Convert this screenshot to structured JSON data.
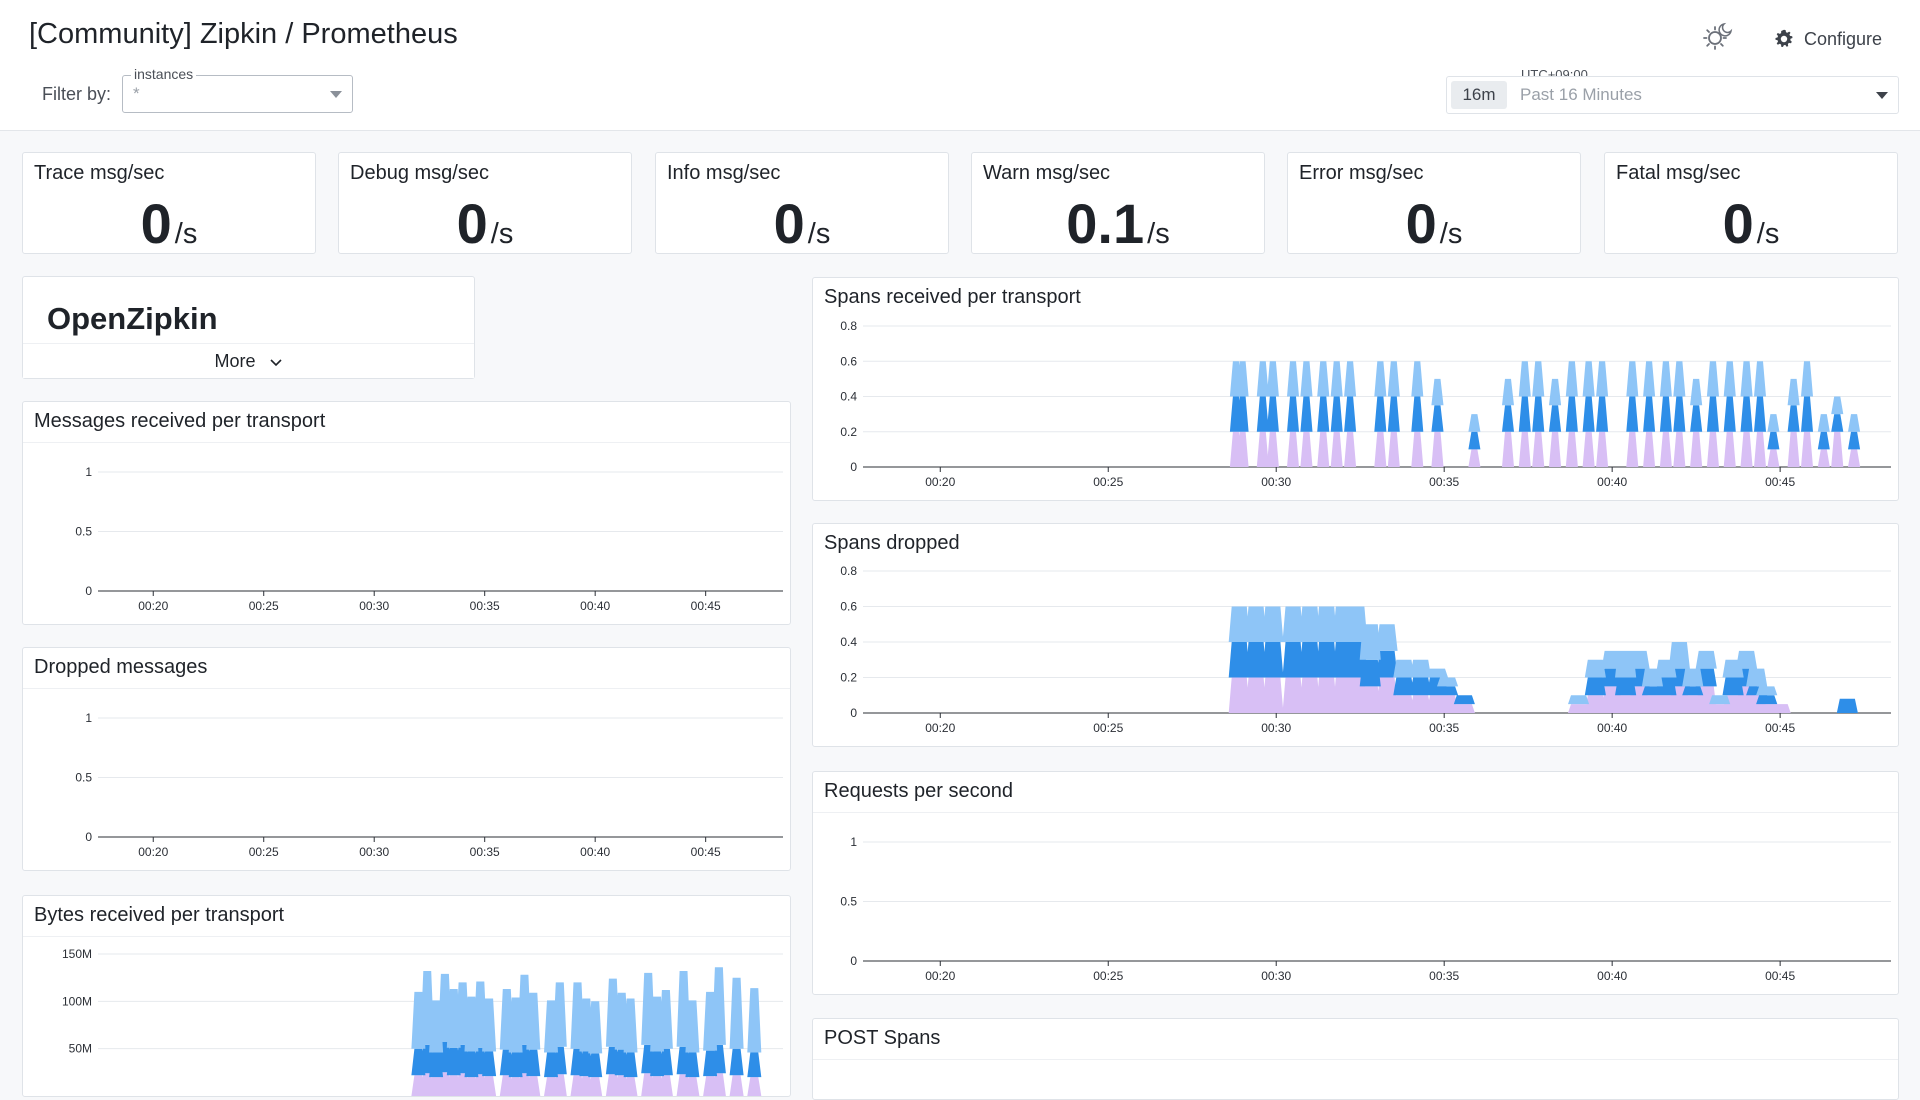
{
  "header": {
    "title": "[Community] Zipkin / Prometheus",
    "filter_label": "Filter by:",
    "filter": {
      "legend": "instances",
      "value": "*"
    },
    "theme_icon": "sun-moon-icon",
    "configure_label": "Configure",
    "timezone": "UTC+09:00",
    "time_chip": "16m",
    "time_range": "Past 16 Minutes"
  },
  "stats": [
    {
      "title": "Trace msg/sec",
      "value": "0",
      "unit": "/s"
    },
    {
      "title": "Debug msg/sec",
      "value": "0",
      "unit": "/s"
    },
    {
      "title": "Info msg/sec",
      "value": "0",
      "unit": "/s"
    },
    {
      "title": "Warn msg/sec",
      "value": "0.1",
      "unit": "/s"
    },
    {
      "title": "Error msg/sec",
      "value": "0",
      "unit": "/s"
    },
    {
      "title": "Fatal msg/sec",
      "value": "0",
      "unit": "/s"
    }
  ],
  "note": {
    "title": "OpenZipkin",
    "more_label": "More"
  },
  "colors": {
    "series_top": "#8ec5f7",
    "series_mid": "#2e8ee8",
    "series_bottom": "#d8bff5",
    "grid": "#e6e9ed",
    "axis": "#2b2f36"
  },
  "panels": {
    "messages": {
      "title": "Messages received per transport"
    },
    "dropped_messages": {
      "title": "Dropped messages"
    },
    "bytes": {
      "title": "Bytes received per transport"
    },
    "spans_received": {
      "title": "Spans received per transport"
    },
    "spans_dropped": {
      "title": "Spans dropped"
    },
    "requests": {
      "title": "Requests per second"
    },
    "post_spans": {
      "title": "POST Spans"
    }
  },
  "chart_data": [
    {
      "id": "messages",
      "type": "area",
      "x": [
        "00:20",
        "00:25",
        "00:30",
        "00:35",
        "00:40",
        "00:45"
      ],
      "yticks": [
        "0",
        "0.5",
        "1"
      ],
      "ylim": [
        0,
        1
      ],
      "series": []
    },
    {
      "id": "dropped_messages",
      "type": "area",
      "x": [
        "00:20",
        "00:25",
        "00:30",
        "00:35",
        "00:40",
        "00:45"
      ],
      "yticks": [
        "0",
        "0.5",
        "1"
      ],
      "ylim": [
        0,
        1
      ],
      "series": []
    },
    {
      "id": "bytes",
      "type": "area",
      "yticks": [
        "50M",
        "100M",
        "150M"
      ],
      "ylim": [
        0,
        150
      ],
      "stack": [
        {
          "t": [
            32.0,
            32.4,
            32.8,
            33.2,
            33.6,
            34.0,
            34.4,
            34.8,
            35.2,
            35.6,
            36.0,
            36.4,
            36.8,
            37.2,
            37.6,
            38.0,
            38.4,
            38.8,
            39.2,
            39.6,
            40.0,
            40.4,
            40.8,
            41.2,
            41.6,
            42.0,
            42.4,
            42.8,
            43.2,
            43.6,
            44.0,
            44.4,
            44.8,
            45.2,
            45.6,
            46.0,
            46.4,
            46.8,
            47.2,
            47.6
          ]
        }
      ],
      "t_range": [
        17.5,
        48.5
      ],
      "layers": [
        {
          "values": [
            22,
            24,
            20,
            25,
            22,
            24,
            20,
            23,
            21,
            0,
            22,
            20,
            24,
            21,
            0,
            20,
            23,
            0,
            22,
            21,
            20,
            0,
            23,
            22,
            20,
            0,
            24,
            21,
            22,
            0,
            23,
            20,
            0,
            21,
            24,
            0,
            22,
            0,
            20,
            0
          ]
        },
        {
          "values": [
            28,
            30,
            26,
            32,
            29,
            30,
            27,
            28,
            26,
            0,
            27,
            26,
            30,
            28,
            0,
            26,
            29,
            0,
            28,
            26,
            25,
            0,
            29,
            27,
            26,
            0,
            30,
            26,
            28,
            0,
            29,
            26,
            0,
            27,
            30,
            0,
            28,
            0,
            26,
            0
          ]
        },
        {
          "values": [
            60,
            78,
            55,
            72,
            62,
            66,
            58,
            70,
            56,
            0,
            64,
            58,
            74,
            60,
            0,
            55,
            68,
            0,
            70,
            56,
            55,
            0,
            72,
            60,
            57,
            0,
            76,
            58,
            62,
            0,
            80,
            55,
            0,
            62,
            82,
            0,
            75,
            0,
            68,
            0
          ]
        }
      ]
    },
    {
      "id": "spans_received",
      "type": "area",
      "x": [
        "00:20",
        "00:25",
        "00:30",
        "00:35",
        "00:40",
        "00:45"
      ],
      "yticks": [
        "0",
        "0.2",
        "0.4",
        "0.6",
        "0.8"
      ],
      "ylim": [
        0,
        0.8
      ],
      "t": [
        28.8,
        29.0,
        29.6,
        29.9,
        30.5,
        30.9,
        31.4,
        31.8,
        32.2,
        32.6,
        33.1,
        33.5,
        34.2,
        34.8,
        35.3,
        35.9,
        36.4,
        36.9,
        37.4,
        37.8,
        38.3,
        38.8,
        39.3,
        39.7,
        40.1,
        40.6,
        41.1,
        41.6,
        42.0,
        42.5,
        43.0,
        43.5,
        44.0,
        44.4,
        44.8,
        45.4,
        45.8,
        46.3,
        46.7,
        47.2
      ],
      "layers": [
        {
          "values": [
            0.2,
            0.2,
            0.2,
            0.2,
            0.2,
            0.2,
            0.2,
            0.2,
            0.2,
            0,
            0.2,
            0.2,
            0.2,
            0.2,
            0,
            0.1,
            0,
            0.2,
            0.2,
            0.2,
            0.2,
            0.2,
            0.2,
            0.2,
            0,
            0.2,
            0.2,
            0.2,
            0.2,
            0.2,
            0.2,
            0.2,
            0.2,
            0.2,
            0.1,
            0.2,
            0.2,
            0.1,
            0.2,
            0.1
          ]
        },
        {
          "values": [
            0.2,
            0.2,
            0.2,
            0.2,
            0.2,
            0.2,
            0.2,
            0.2,
            0.2,
            0,
            0.2,
            0.2,
            0.2,
            0.15,
            0,
            0.1,
            0,
            0.15,
            0.2,
            0.2,
            0.15,
            0.2,
            0.2,
            0.2,
            0,
            0.2,
            0.2,
            0.2,
            0.2,
            0.15,
            0.2,
            0.2,
            0.2,
            0.2,
            0.1,
            0.15,
            0.2,
            0.1,
            0.1,
            0.1
          ]
        },
        {
          "values": [
            0.2,
            0.2,
            0.2,
            0.2,
            0.2,
            0.2,
            0.2,
            0.2,
            0.2,
            0,
            0.2,
            0.2,
            0.2,
            0.15,
            0,
            0.1,
            0,
            0.15,
            0.2,
            0.2,
            0.15,
            0.2,
            0.2,
            0.2,
            0,
            0.2,
            0.2,
            0.2,
            0.2,
            0.15,
            0.2,
            0.2,
            0.2,
            0.2,
            0.1,
            0.15,
            0.2,
            0.1,
            0.1,
            0.1
          ]
        }
      ]
    },
    {
      "id": "spans_dropped",
      "type": "area",
      "x": [
        "00:20",
        "00:25",
        "00:30",
        "00:35",
        "00:40",
        "00:45"
      ],
      "yticks": [
        "0",
        "0.2",
        "0.4",
        "0.6",
        "0.8"
      ],
      "ylim": [
        0,
        0.8
      ],
      "t": [
        28.9,
        29.4,
        29.9,
        30.5,
        31.0,
        31.5,
        32.0,
        32.4,
        32.8,
        33.3,
        33.8,
        34.3,
        34.8,
        35.1,
        35.6,
        36.0,
        37.0,
        38.5,
        39.0,
        39.5,
        40.0,
        40.4,
        40.8,
        41.2,
        41.6,
        42.0,
        42.4,
        42.8,
        43.2,
        43.6,
        44.0,
        44.3,
        44.6,
        45.0,
        45.5,
        45.8,
        46.5,
        47.0,
        47.4,
        47.6
      ],
      "layers": [
        {
          "values": [
            0.2,
            0.2,
            0.2,
            0.2,
            0.2,
            0.2,
            0.2,
            0.2,
            0.15,
            0.2,
            0.1,
            0.1,
            0.1,
            0.1,
            0.05,
            0,
            0,
            0,
            0.05,
            0.1,
            0.15,
            0.1,
            0.15,
            0.1,
            0.1,
            0.15,
            0.1,
            0.15,
            0.05,
            0.1,
            0.15,
            0.1,
            0.05,
            0.05,
            0,
            0,
            0,
            0,
            0,
            0
          ]
        },
        {
          "values": [
            0.2,
            0.2,
            0.2,
            0.2,
            0.2,
            0.2,
            0.2,
            0.2,
            0.15,
            0.15,
            0.1,
            0.1,
            0.1,
            0.05,
            0.05,
            0,
            0,
            0,
            0,
            0.1,
            0.1,
            0.1,
            0.1,
            0.05,
            0.1,
            0.1,
            0.05,
            0.1,
            0,
            0.1,
            0.1,
            0.05,
            0.05,
            0,
            0,
            0,
            0,
            0.08,
            0,
            0
          ]
        },
        {
          "values": [
            0.2,
            0.2,
            0.2,
            0.2,
            0.2,
            0.2,
            0.2,
            0.2,
            0.2,
            0.15,
            0.1,
            0.1,
            0.05,
            0.05,
            0,
            0,
            0,
            0,
            0.05,
            0.1,
            0.1,
            0.15,
            0.1,
            0.1,
            0.1,
            0.15,
            0.1,
            0.1,
            0.05,
            0.1,
            0.1,
            0.1,
            0.05,
            0,
            0,
            0,
            0,
            0,
            0,
            0
          ]
        }
      ]
    },
    {
      "id": "requests",
      "type": "area",
      "x": [
        "00:20",
        "00:25",
        "00:30",
        "00:35",
        "00:40",
        "00:45"
      ],
      "yticks": [
        "0",
        "0.5",
        "1"
      ],
      "ylim": [
        0,
        1
      ],
      "series": []
    }
  ]
}
